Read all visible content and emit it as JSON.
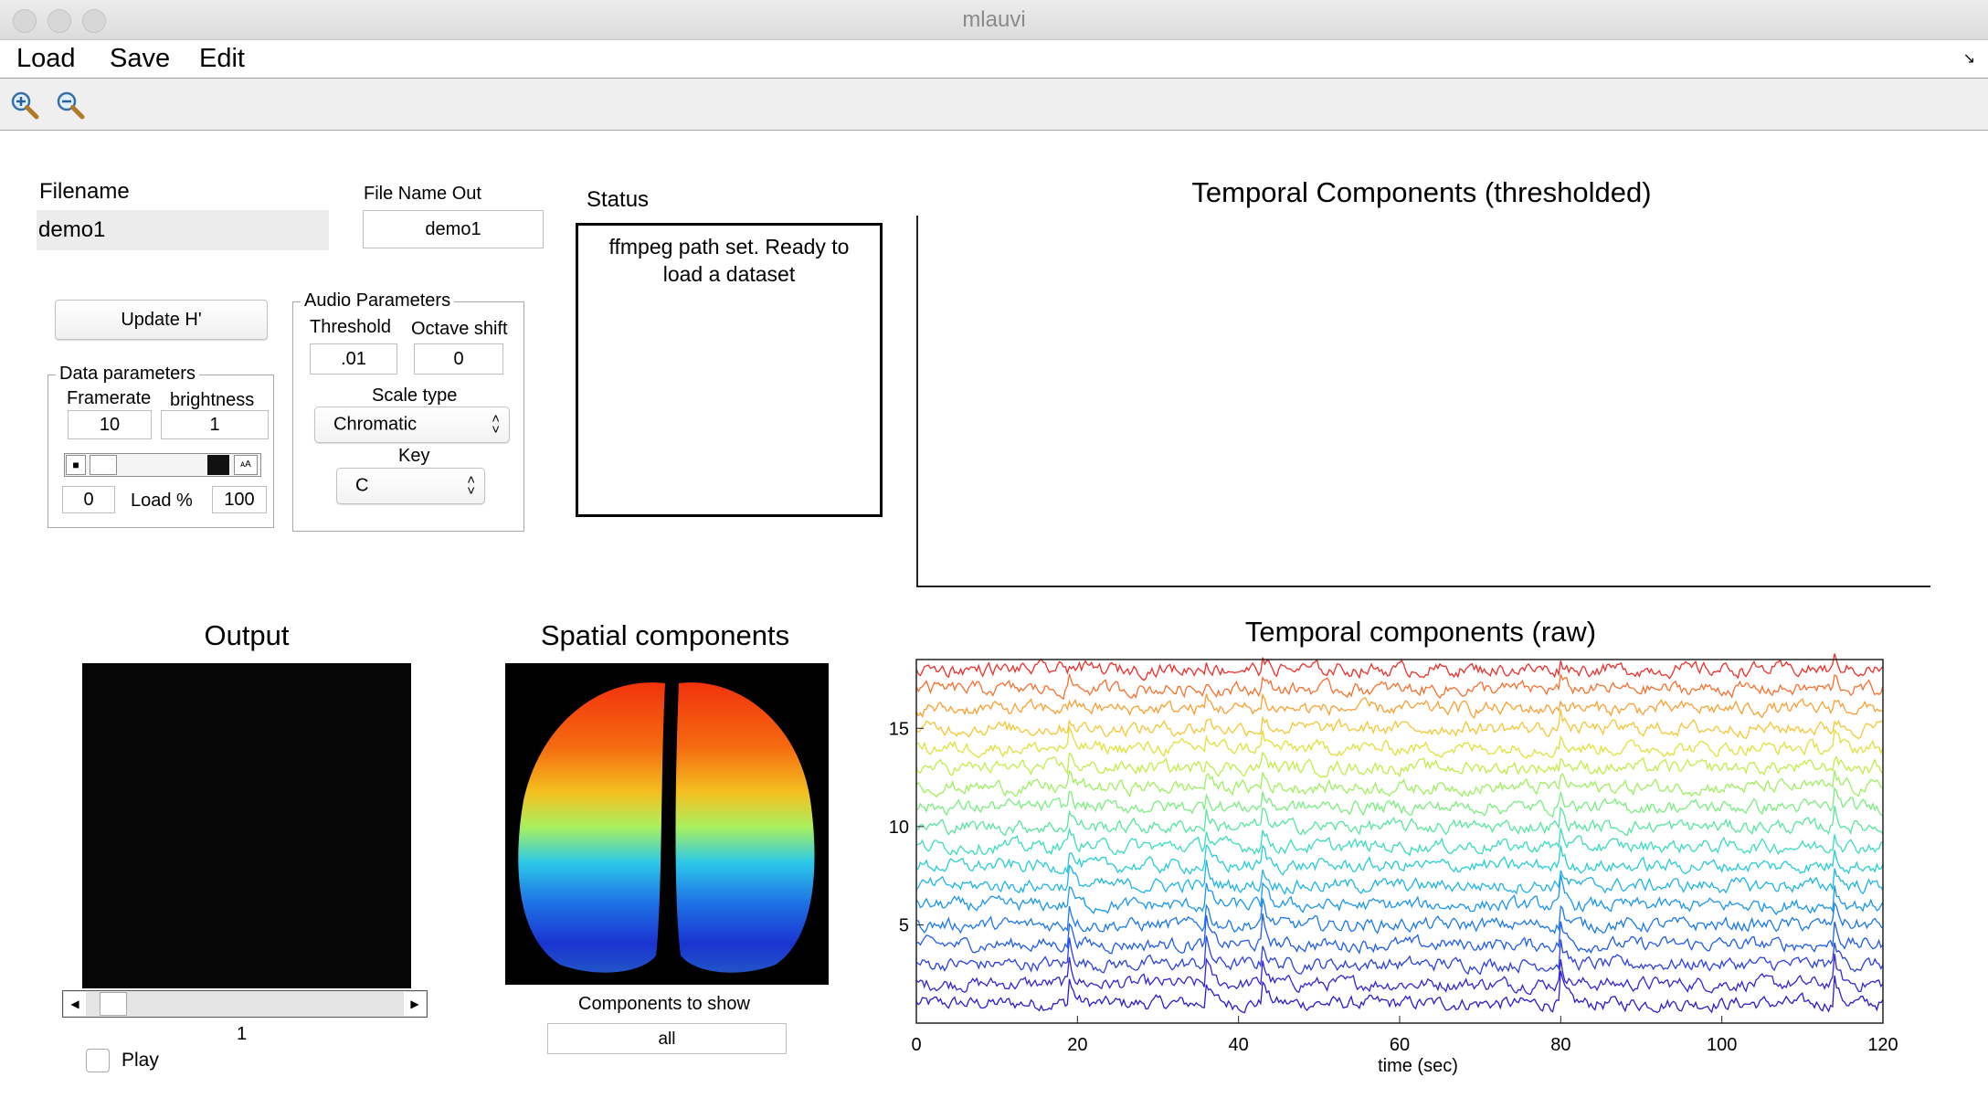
{
  "window": {
    "title": "mlauvi"
  },
  "menu": {
    "items": [
      "Load",
      "Save",
      "Edit"
    ]
  },
  "toolbar": {
    "tools": [
      "zoom-in-icon",
      "zoom-out-icon"
    ]
  },
  "filename": {
    "label": "Filename",
    "value": "demo1"
  },
  "file_name_out": {
    "label": "File Name Out",
    "value": "demo1"
  },
  "status": {
    "label": "Status",
    "text": "ffmpeg path set. Ready to load a dataset"
  },
  "update_button": {
    "label": "Update H'"
  },
  "data_params": {
    "title": "Data parameters",
    "framerate_label": "Framerate",
    "framerate_value": "10",
    "brightness_label": "brightness",
    "brightness_value": "1",
    "load_start": "0",
    "load_label": "Load %",
    "load_end": "100"
  },
  "audio_params": {
    "title": "Audio Parameters",
    "threshold_label": "Threshold",
    "threshold_value": ".01",
    "octave_label": "Octave shift",
    "octave_value": "0",
    "scale_label": "Scale type",
    "scale_value": "Chromatic",
    "key_label": "Key",
    "key_value": "C"
  },
  "temporal_thresholded": {
    "title": "Temporal Components (thresholded)"
  },
  "output": {
    "title": "Output",
    "frame": "1",
    "play_label": "Play",
    "frame_fraction": 0.03
  },
  "spatial": {
    "title": "Spatial components",
    "components_label": "Components to show",
    "components_value": "all"
  },
  "chart_data": {
    "type": "line",
    "title": "Temporal components (raw)",
    "xlabel": "time (sec)",
    "ylabel": "",
    "xlim": [
      0,
      120
    ],
    "ylim": [
      0,
      18.5
    ],
    "xticks": [
      0,
      20,
      40,
      60,
      80,
      100,
      120
    ],
    "yticks": [
      5,
      10,
      15
    ],
    "n_components": 18,
    "series_colors": [
      "#2b1ad0",
      "#3324d8",
      "#2a40e0",
      "#1f5ce8",
      "#1a78ee",
      "#1b96ee",
      "#1fb4e6",
      "#27ccd8",
      "#3adcc0",
      "#57e6a0",
      "#7aee80",
      "#9ef060",
      "#c2ec48",
      "#e2e03a",
      "#f6c636",
      "#faa032",
      "#f6702e",
      "#ee2e2a"
    ],
    "grid": false,
    "legend": "none"
  }
}
